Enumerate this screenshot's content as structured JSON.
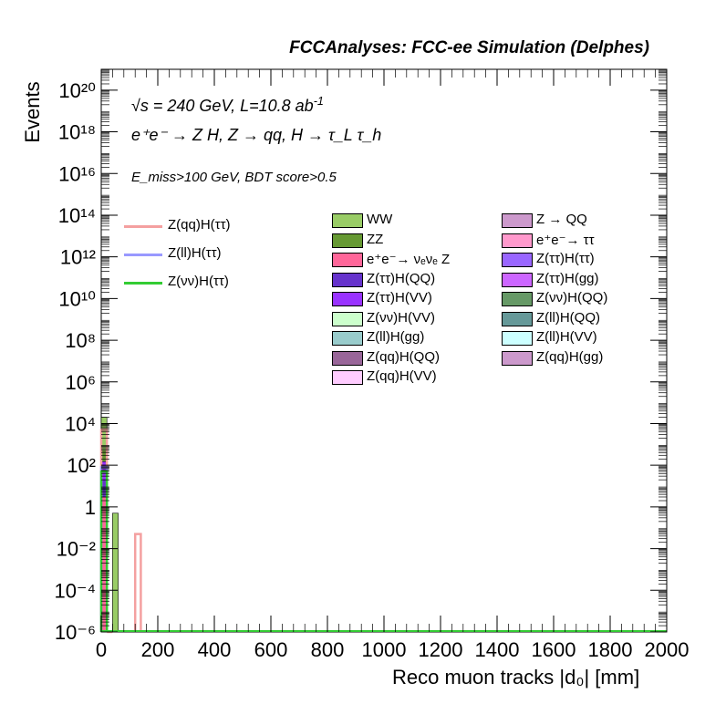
{
  "header": {
    "title": "FCCAnalyses: FCC-ee Simulation (Delphes)",
    "energy_label": "√s = 240 GeV, L=10.8 ab",
    "energy_sup": "-1",
    "process_label": "e⁺e⁻ → Z H, Z → qq, H → τ_L τ_h",
    "cut_label": "E_miss>100 GeV, BDT score>0.5"
  },
  "axes": {
    "xlabel": "Reco muon tracks |d₀| [mm]",
    "ylabel": "Events",
    "xticks": [
      "0",
      "200",
      "400",
      "600",
      "800",
      "1000",
      "1200",
      "1400",
      "1600",
      "1800",
      "2000"
    ],
    "yticks": [
      "10⁻⁶",
      "10⁻⁴",
      "10⁻²",
      "1",
      "10²",
      "10⁴",
      "10⁶",
      "10⁸",
      "10¹⁰",
      "10¹²",
      "10¹⁴",
      "10¹⁶",
      "10¹⁸",
      "10²⁰"
    ]
  },
  "legend": {
    "signal": [
      {
        "label": "Z(qq)H(ττ)",
        "color": "#f4a0a0"
      },
      {
        "label": "Z(ll)H(ττ)",
        "color": "#9999ff"
      },
      {
        "label": "Z(νν)H(ττ)",
        "color": "#33cc33"
      }
    ],
    "background_col1": [
      {
        "label": "WW",
        "color": "#99cc66"
      },
      {
        "label": "ZZ",
        "color": "#669933"
      },
      {
        "label": "e⁺e⁻→ νₑνₑ Z",
        "color": "#ff6699"
      },
      {
        "label": "Z(ττ)H(QQ)",
        "color": "#6633cc"
      },
      {
        "label": "Z(ττ)H(VV)",
        "color": "#9933ff"
      },
      {
        "label": "Z(νν)H(VV)",
        "color": "#ccffcc"
      },
      {
        "label": "Z(ll)H(gg)",
        "color": "#99cccc"
      },
      {
        "label": "Z(qq)H(QQ)",
        "color": "#996699"
      },
      {
        "label": "Z(qq)H(VV)",
        "color": "#ffccff"
      }
    ],
    "background_col2": [
      {
        "label": "Z → QQ",
        "color": "#cc99cc"
      },
      {
        "label": "e⁺e⁻→ ττ",
        "color": "#ff99cc"
      },
      {
        "label": "Z(ττ)H(ττ)",
        "color": "#9966ff"
      },
      {
        "label": "Z(ττ)H(gg)",
        "color": "#cc66ff"
      },
      {
        "label": "Z(νν)H(QQ)",
        "color": "#669966"
      },
      {
        "label": "Z(ll)H(QQ)",
        "color": "#669999"
      },
      {
        "label": "Z(ll)H(VV)",
        "color": "#ccffff"
      },
      {
        "label": "Z(qq)H(gg)",
        "color": "#cc99cc"
      }
    ]
  },
  "chart_data": {
    "type": "bar",
    "log_y": true,
    "xlim": [
      0,
      2000
    ],
    "ylim": [
      1e-06,
      1e+21
    ],
    "bin_width": 20,
    "stacked_background": [
      {
        "name": "WW",
        "color": "#99cc66",
        "bins": [
          {
            "x": 0,
            "y": 20000
          },
          {
            "x": 40,
            "y": 0.5
          }
        ]
      },
      {
        "name": "ZZ",
        "color": "#669933",
        "bins": [
          {
            "x": 0,
            "y": 500
          }
        ]
      },
      {
        "name": "Z(ττ)H(VV)",
        "color": "#9933ff",
        "bins": [
          {
            "x": 0,
            "y": 150
          }
        ]
      },
      {
        "name": "Z(ττ)H(QQ)",
        "color": "#6633cc",
        "bins": [
          {
            "x": 0,
            "y": 20
          }
        ]
      },
      {
        "name": "e⁺e⁻→ νₑνₑ Z",
        "color": "#ff6699",
        "bins": [
          {
            "x": 0,
            "y": 3
          }
        ]
      }
    ],
    "signal_lines": [
      {
        "name": "Z(qq)H(ττ)",
        "color": "#f4a0a0",
        "bins": [
          {
            "x": 0,
            "y": 5000
          },
          {
            "x": 20,
            "y": 0
          },
          {
            "x": 120,
            "y": 0.05
          }
        ]
      },
      {
        "name": "Z(ll)H(ττ)",
        "color": "#9999ff",
        "bins": [
          {
            "x": 0,
            "y": 80
          }
        ]
      },
      {
        "name": "Z(νν)H(ττ)",
        "color": "#33cc33",
        "bins": [
          {
            "x": 0,
            "y": 50
          }
        ]
      }
    ]
  }
}
